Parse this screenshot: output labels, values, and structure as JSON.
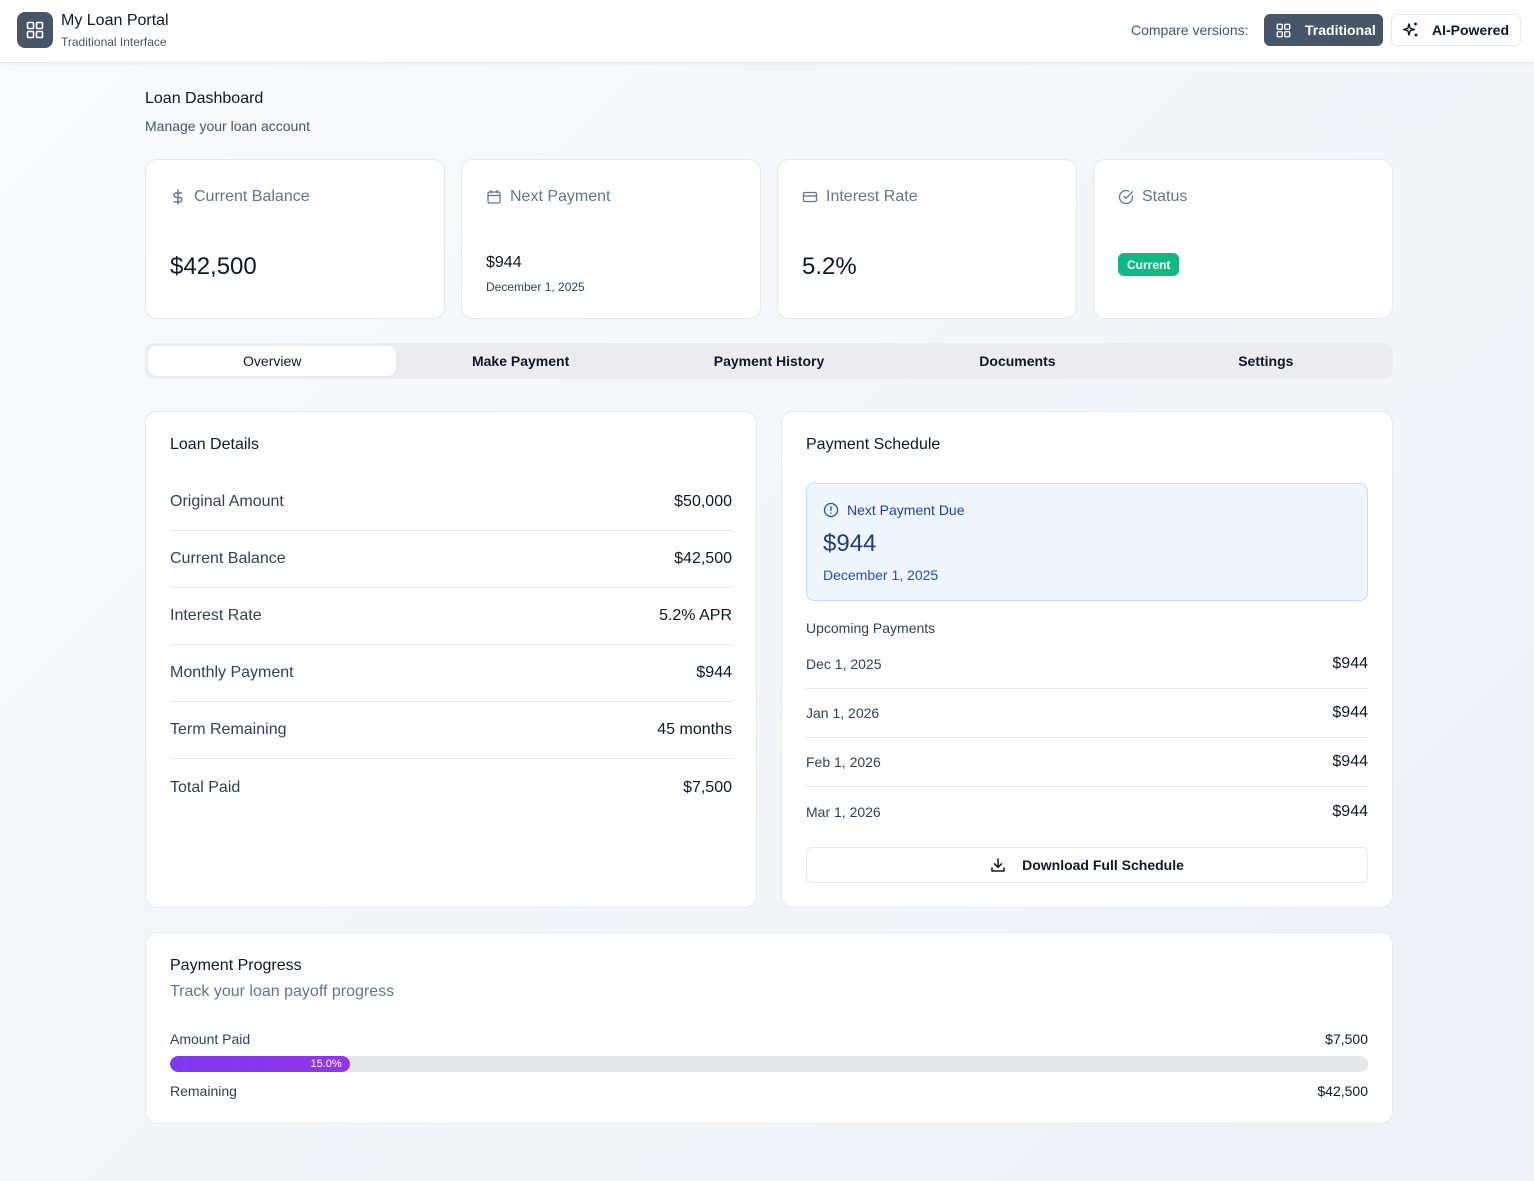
{
  "header": {
    "app_title": "My Loan Portal",
    "app_subtitle": "Traditional Interface",
    "compare_label": "Compare versions:",
    "versions": {
      "traditional": "Traditional",
      "ai": "AI-Powered"
    },
    "active_version": "Traditional",
    "accent_color": "#475569"
  },
  "page": {
    "title": "Loan Dashboard",
    "subtitle": "Manage your loan account"
  },
  "stats": {
    "current_balance": {
      "label": "Current Balance",
      "value": "$42,500",
      "icon": "dollar-icon"
    },
    "next_payment": {
      "label": "Next Payment",
      "value": "$944",
      "date": "December 1, 2025",
      "icon": "calendar-icon"
    },
    "interest_rate": {
      "label": "Interest Rate",
      "value": "5.2%",
      "icon": "credit-card-icon"
    },
    "status": {
      "label": "Status",
      "value": "Current",
      "icon": "check-circle-icon",
      "badge_color": "#10b981"
    }
  },
  "tabs": [
    "Overview",
    "Make Payment",
    "Payment History",
    "Documents",
    "Settings"
  ],
  "active_tab": "Overview",
  "loan_details": {
    "title": "Loan Details",
    "rows": [
      {
        "label": "Original Amount",
        "value": "$50,000"
      },
      {
        "label": "Current Balance",
        "value": "$42,500"
      },
      {
        "label": "Interest Rate",
        "value": "5.2% APR"
      },
      {
        "label": "Monthly Payment",
        "value": "$944"
      },
      {
        "label": "Term Remaining",
        "value": "45 months"
      },
      {
        "label": "Total Paid",
        "value": "$7,500"
      }
    ]
  },
  "schedule": {
    "title": "Payment Schedule",
    "next_due": {
      "label": "Next Payment Due",
      "amount": "$944",
      "date": "December 1, 2025",
      "icon": "alert-circle-icon"
    },
    "upcoming_label": "Upcoming Payments",
    "upcoming": [
      {
        "date": "Dec 1, 2025",
        "amount": "$944"
      },
      {
        "date": "Jan 1, 2026",
        "amount": "$944"
      },
      {
        "date": "Feb 1, 2026",
        "amount": "$944"
      },
      {
        "date": "Mar 1, 2026",
        "amount": "$944"
      }
    ],
    "download_label": "Download Full Schedule"
  },
  "progress": {
    "title": "Payment Progress",
    "subtitle": "Track your loan payoff progress",
    "paid_label": "Amount Paid",
    "paid_value": "$7,500",
    "remaining_label": "Remaining",
    "remaining_value": "$42,500",
    "percent": 15.0,
    "percent_text": "15.0%",
    "bar_color": "#7e22ce"
  }
}
